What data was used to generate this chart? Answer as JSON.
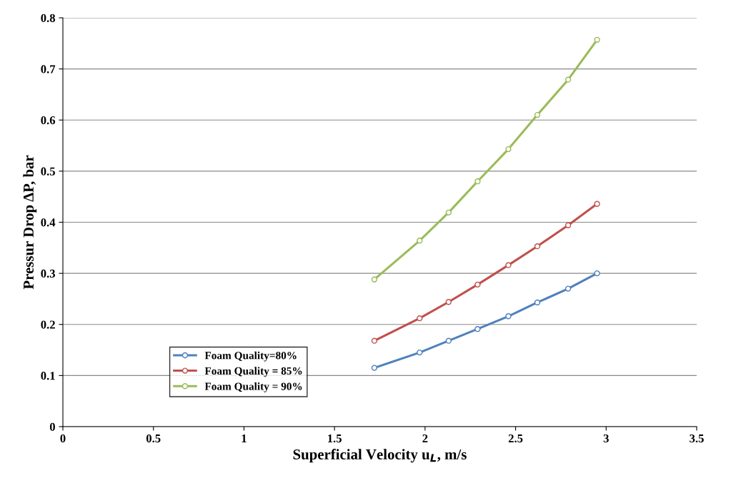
{
  "chart_data": {
    "type": "line",
    "xlabel": "Superficial Velocity u$_{L}$, m/s",
    "ylabel": "Pressur Drop ΔP, bar",
    "x": [
      1.72,
      1.97,
      2.13,
      2.29,
      2.46,
      2.62,
      2.79,
      2.95
    ],
    "series": [
      {
        "name": "Foam Quality=80%",
        "color": "#4f81bd",
        "values": [
          0.115,
          0.145,
          0.168,
          0.191,
          0.216,
          0.243,
          0.27,
          0.3
        ]
      },
      {
        "name": "Foam Quality = 85%",
        "color": "#c0504d",
        "values": [
          0.168,
          0.212,
          0.244,
          0.278,
          0.316,
          0.353,
          0.394,
          0.436
        ]
      },
      {
        "name": "Foam Quality = 90%",
        "color": "#9bbb59",
        "values": [
          0.288,
          0.364,
          0.419,
          0.48,
          0.543,
          0.61,
          0.679,
          0.757
        ]
      }
    ],
    "xlim": [
      0,
      3.5
    ],
    "xticks": [
      0,
      0.5,
      1,
      1.5,
      2,
      2.5,
      3,
      3.5
    ],
    "ylim": [
      0,
      0.8
    ],
    "yticks": [
      0,
      0.1,
      0.2,
      0.3,
      0.4,
      0.5,
      0.6,
      0.7,
      0.8
    ],
    "grid": "y",
    "legend": "bottom left",
    "marker": "circle",
    "line_style": "solid"
  }
}
